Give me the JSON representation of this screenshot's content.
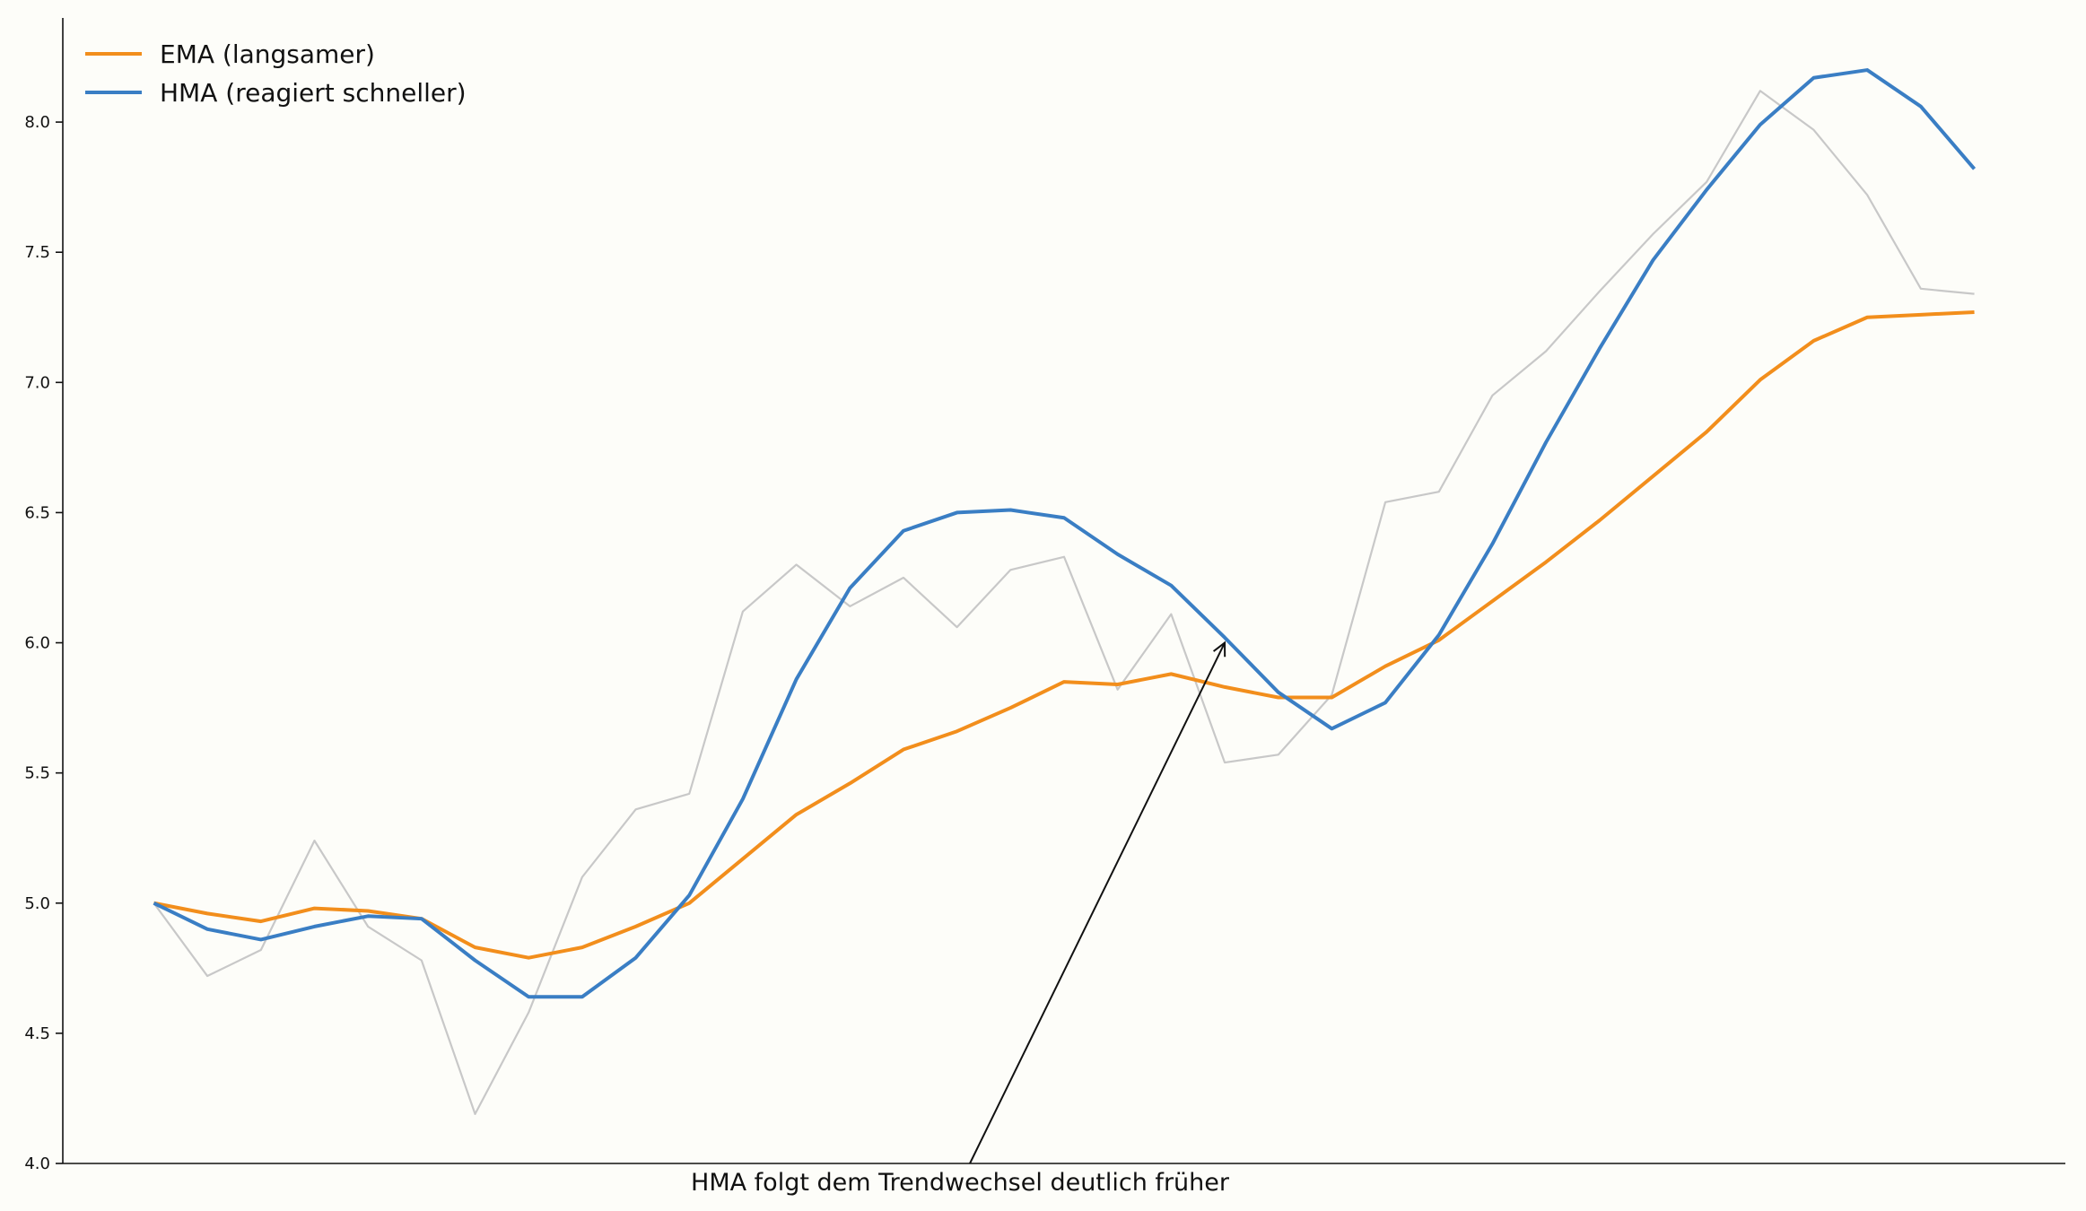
{
  "chart_data": {
    "type": "line",
    "title": "",
    "xlabel": "",
    "ylabel": "",
    "x": [
      0,
      1,
      2,
      3,
      4,
      5,
      6,
      7,
      8,
      9,
      10,
      11,
      12,
      13,
      14,
      15,
      16,
      17,
      18,
      19,
      20,
      21,
      22,
      23,
      24,
      25,
      26,
      27,
      28,
      29,
      30,
      31,
      32,
      33,
      34
    ],
    "xlim": [
      -1.7,
      35.7
    ],
    "ylim": [
      4.0,
      8.4
    ],
    "yticks": [
      4.0,
      4.5,
      5.0,
      5.5,
      6.0,
      6.5,
      7.0,
      7.5,
      8.0
    ],
    "ytick_labels": [
      "4.0",
      "4.5",
      "5.0",
      "5.5",
      "6.0",
      "6.5",
      "7.0",
      "7.5",
      "8.0"
    ],
    "grid": false,
    "legend_position": "top-left",
    "series": [
      {
        "key": "raw",
        "color": "#c8c8c8",
        "values": [
          5.0,
          4.72,
          4.82,
          5.24,
          4.91,
          4.78,
          4.19,
          4.58,
          5.1,
          5.36,
          5.42,
          6.12,
          6.3,
          6.14,
          6.25,
          6.06,
          6.28,
          6.33,
          5.82,
          6.11,
          5.54,
          5.57,
          5.8,
          6.54,
          6.58,
          6.95,
          7.12,
          7.35,
          7.57,
          7.77,
          8.12,
          7.97,
          7.72,
          7.36,
          7.34
        ]
      },
      {
        "key": "ema",
        "name": "EMA (langsamer)",
        "color": "#f28e1c",
        "values": [
          5.0,
          4.96,
          4.93,
          4.98,
          4.97,
          4.94,
          4.83,
          4.79,
          4.83,
          4.91,
          5.0,
          5.17,
          5.34,
          5.46,
          5.59,
          5.66,
          5.75,
          5.85,
          5.84,
          5.88,
          5.83,
          5.79,
          5.79,
          5.91,
          6.01,
          6.16,
          6.31,
          6.47,
          6.64,
          6.81,
          7.01,
          7.16,
          7.25,
          7.26,
          7.27
        ]
      },
      {
        "key": "hma",
        "name": "HMA (reagiert schneller)",
        "color": "#3a7ec4",
        "values": [
          5.0,
          4.9,
          4.86,
          4.91,
          4.95,
          4.94,
          4.78,
          4.64,
          4.64,
          4.79,
          5.03,
          5.4,
          5.86,
          6.21,
          6.43,
          6.5,
          6.51,
          6.48,
          6.34,
          6.22,
          6.02,
          5.81,
          5.67,
          5.77,
          6.03,
          6.38,
          6.77,
          7.13,
          7.47,
          7.74,
          7.99,
          8.17,
          8.2,
          8.06,
          7.82
        ]
      }
    ],
    "annotations": [
      {
        "text": "HMA folgt dem Trendwechsel deutlich früher",
        "point": {
          "x": 20,
          "y": 6.0
        }
      }
    ]
  }
}
